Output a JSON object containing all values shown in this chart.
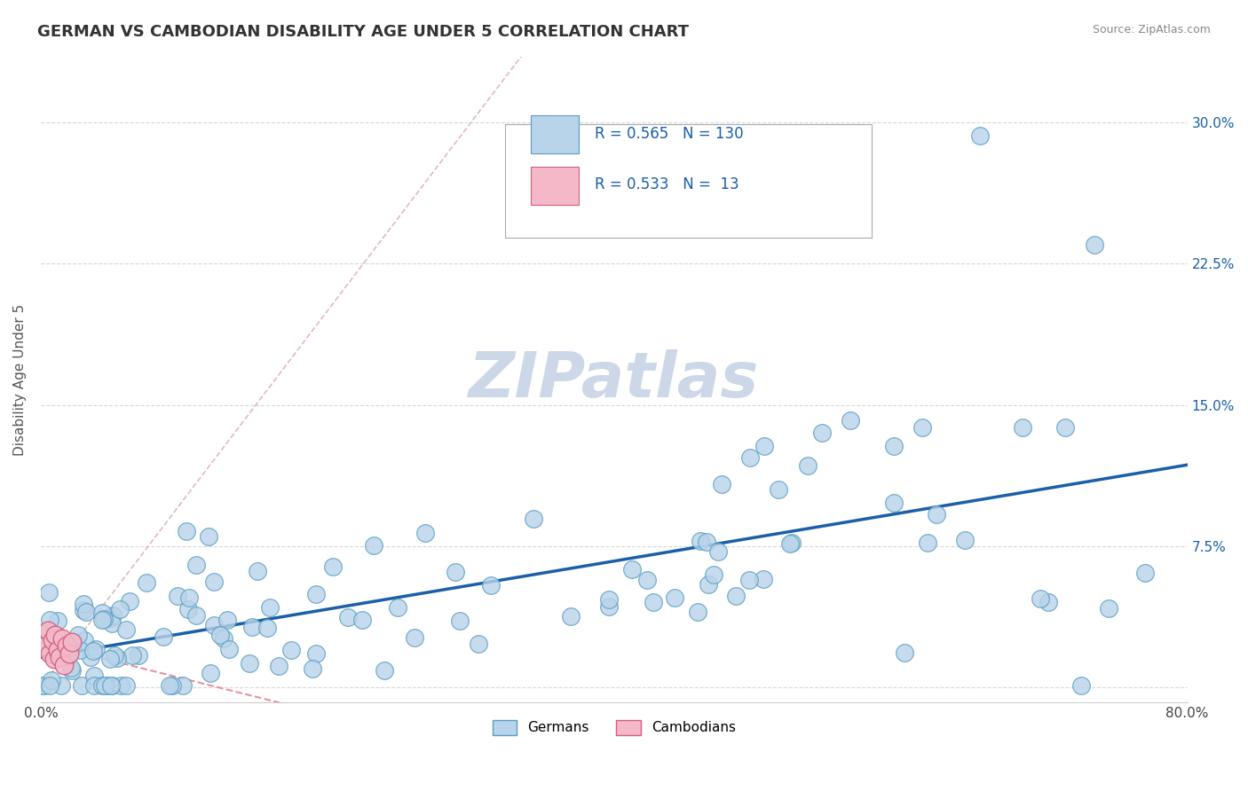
{
  "title": "GERMAN VS CAMBODIAN DISABILITY AGE UNDER 5 CORRELATION CHART",
  "source": "Source: ZipAtlas.com",
  "ylabel": "Disability Age Under 5",
  "xlim": [
    0.0,
    0.8
  ],
  "ylim": [
    -0.008,
    0.335
  ],
  "german_R": 0.565,
  "german_N": 130,
  "cambodian_R": 0.533,
  "cambodian_N": 13,
  "blue_scatter_face": "#b8d4ea",
  "blue_scatter_edge": "#5b9dc0",
  "pink_scatter_face": "#f4b8c8",
  "pink_scatter_edge": "#d06080",
  "blue_line_color": "#1a5fa8",
  "pink_line_color": "#e08090",
  "diag_line_color": "#e0b0b8",
  "grid_color": "#d8d8d8",
  "watermark_color": "#ccd8e8",
  "background_color": "#ffffff",
  "title_color": "#333333",
  "title_fontsize": 13,
  "legend_color": "#1a5fa8",
  "ytick_vals": [
    0.0,
    0.075,
    0.15,
    0.225,
    0.3
  ],
  "ytick_labels": [
    "",
    "7.5%",
    "15.0%",
    "22.5%",
    "30.0%"
  ],
  "xtick_show": {
    "0.0": "0.0%",
    "0.8": "80.0%"
  }
}
